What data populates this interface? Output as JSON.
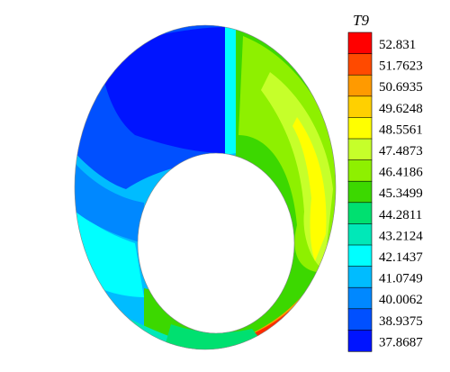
{
  "chart_data": {
    "type": "heatmap",
    "plot": "annular contour field",
    "legend": {
      "title": "T9",
      "position": "right",
      "levels": [
        "52.831",
        "51.7623",
        "50.6935",
        "49.6248",
        "48.5561",
        "47.4873",
        "46.4186",
        "45.3499",
        "44.2811",
        "43.2124",
        "42.1437",
        "41.0749",
        "40.0062",
        "38.9375",
        "37.8687"
      ],
      "colors": [
        "#ff0000",
        "#ff4a00",
        "#ff9a00",
        "#ffd000",
        "#ffff00",
        "#c6ff2a",
        "#8ef000",
        "#3cd800",
        "#00e070",
        "#00e8b8",
        "#00ffff",
        "#00bcff",
        "#0088ff",
        "#0050ff",
        "#0014ff"
      ]
    },
    "range": [
      37.8687,
      52.831
    ],
    "grid": false,
    "field": {
      "description_values": {
        "upper_left": 38.0,
        "left": 39.5,
        "lower_left": 41.0,
        "bottom": 44.0,
        "lower_right": 51.5,
        "right": 49.0,
        "upper_right": 46.0,
        "top_band": 47.0
      }
    }
  }
}
